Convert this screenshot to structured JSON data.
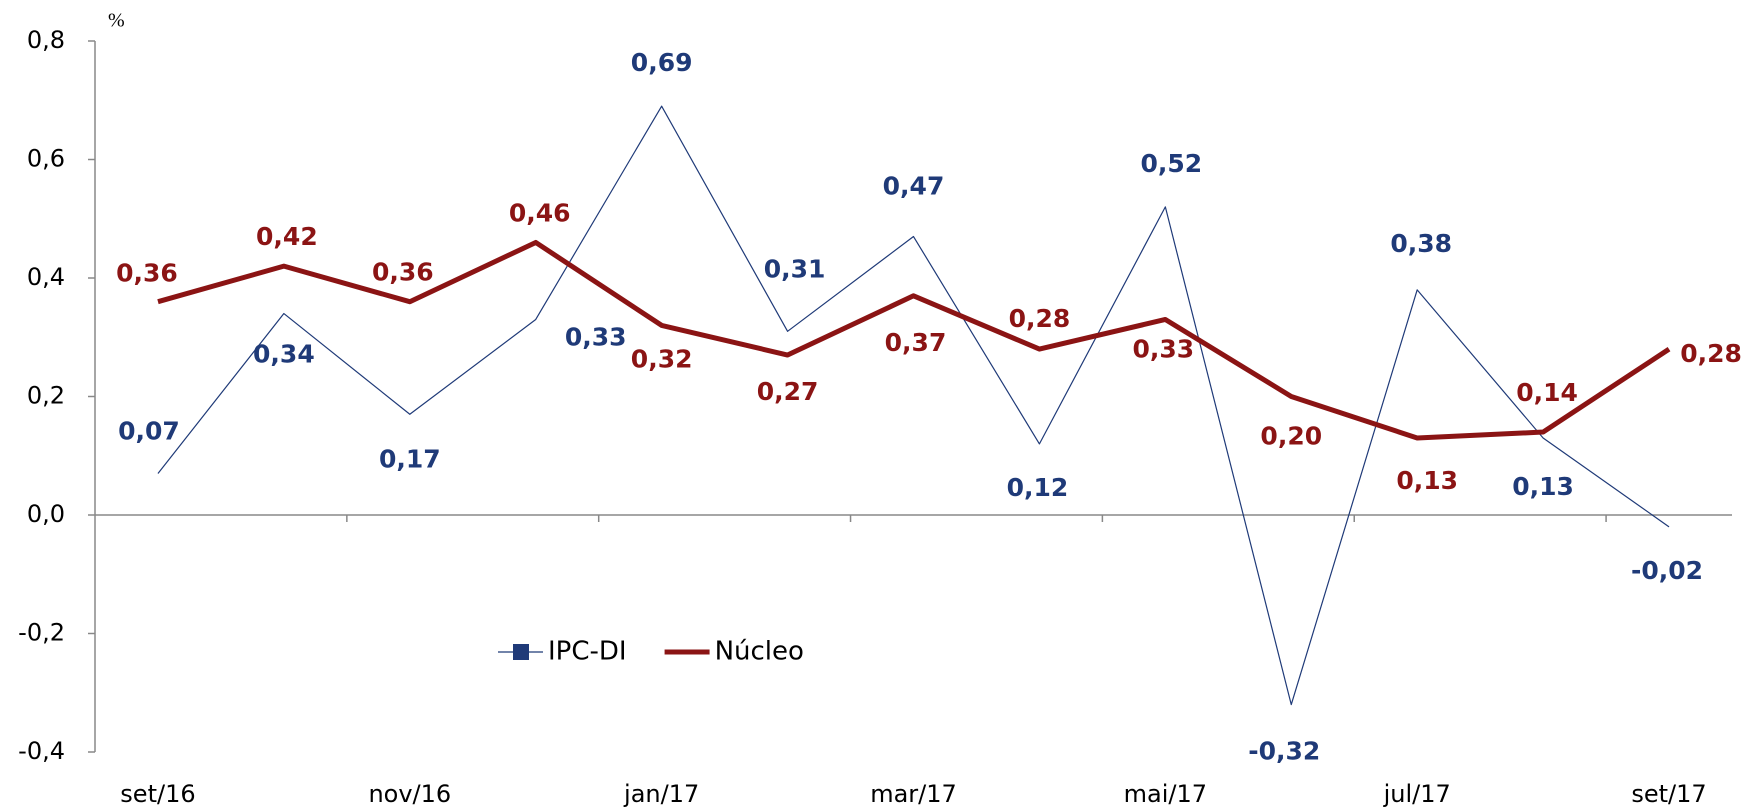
{
  "chart_data": {
    "type": "line",
    "y_label": "%",
    "categories": [
      "set/16",
      null,
      "nov/16",
      null,
      "jan/17",
      null,
      "mar/17",
      null,
      "mai/17",
      null,
      "jul/17",
      null,
      "set/17"
    ],
    "series": [
      {
        "name": "IPC-DI",
        "color": "#1f3a78",
        "values": [
          0.07,
          0.34,
          0.17,
          0.33,
          0.69,
          0.31,
          0.47,
          0.12,
          0.52,
          -0.32,
          0.38,
          0.13,
          -0.02
        ],
        "value_labels": [
          "0,07",
          "0,34",
          "0,17",
          "0,33",
          "0,69",
          "0,31",
          "0,47",
          "0,12",
          "0,52",
          "-0,32",
          "0,38",
          "0,13",
          "-0,02"
        ]
      },
      {
        "name": "Núcleo",
        "color": "#8b1414",
        "values": [
          0.36,
          0.42,
          0.36,
          0.46,
          0.32,
          0.27,
          0.37,
          0.28,
          0.33,
          0.2,
          0.13,
          0.14,
          0.28
        ],
        "value_labels": [
          "0,36",
          "0,42",
          "0,36",
          "0,46",
          "0,32",
          "0,27",
          "0,37",
          "0,28",
          "0,33",
          "0,20",
          "0,13",
          "0,14",
          "0,28"
        ]
      }
    ],
    "ylim": [
      -0.4,
      0.8
    ],
    "yticks": [
      {
        "value": -0.4,
        "label": "-0,4"
      },
      {
        "value": -0.2,
        "label": "-0,2"
      },
      {
        "value": 0,
        "label": "0,0"
      },
      {
        "value": 0.2,
        "label": "0,2"
      },
      {
        "value": 0.4,
        "label": "0,4"
      },
      {
        "value": 0.6,
        "label": "0,6"
      },
      {
        "value": 0.8,
        "label": "0,8"
      }
    ],
    "grid": false,
    "legend": "lower-left"
  }
}
